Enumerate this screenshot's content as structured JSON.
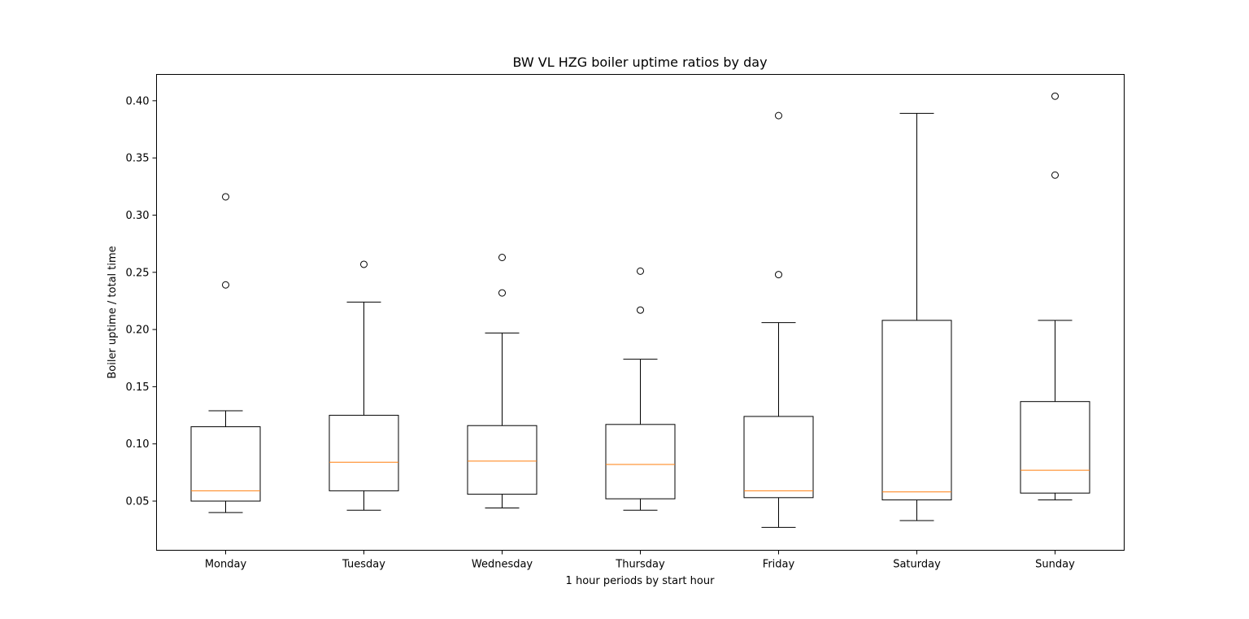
{
  "chart_data": {
    "type": "box",
    "title": "BW VL HZG boiler uptime ratios by day",
    "xlabel": "1 hour periods by start hour",
    "ylabel": "Boiler uptime / total time",
    "ylim": [
      0.007,
      0.423
    ],
    "yticks": [
      "0.05",
      "0.10",
      "0.15",
      "0.20",
      "0.25",
      "0.30",
      "0.35",
      "0.40"
    ],
    "grid": false,
    "colors": {
      "box": "#000000",
      "median": "#ff7f0e",
      "flier": "#000000"
    },
    "categories": [
      "Monday",
      "Tuesday",
      "Wednesday",
      "Thursday",
      "Friday",
      "Saturday",
      "Sunday"
    ],
    "boxes": [
      {
        "category": "Monday",
        "whisker_low": 0.04,
        "q1": 0.05,
        "median": 0.059,
        "q3": 0.115,
        "whisker_high": 0.129,
        "fliers": [
          0.239,
          0.316
        ]
      },
      {
        "category": "Tuesday",
        "whisker_low": 0.042,
        "q1": 0.059,
        "median": 0.084,
        "q3": 0.125,
        "whisker_high": 0.224,
        "fliers": [
          0.257
        ]
      },
      {
        "category": "Wednesday",
        "whisker_low": 0.044,
        "q1": 0.056,
        "median": 0.085,
        "q3": 0.116,
        "whisker_high": 0.197,
        "fliers": [
          0.232,
          0.263
        ]
      },
      {
        "category": "Thursday",
        "whisker_low": 0.042,
        "q1": 0.052,
        "median": 0.082,
        "q3": 0.117,
        "whisker_high": 0.174,
        "fliers": [
          0.217,
          0.251
        ]
      },
      {
        "category": "Friday",
        "whisker_low": 0.027,
        "q1": 0.053,
        "median": 0.059,
        "q3": 0.124,
        "whisker_high": 0.206,
        "fliers": [
          0.248,
          0.387
        ]
      },
      {
        "category": "Saturday",
        "whisker_low": 0.033,
        "q1": 0.051,
        "median": 0.058,
        "q3": 0.208,
        "whisker_high": 0.389,
        "fliers": []
      },
      {
        "category": "Sunday",
        "whisker_low": 0.051,
        "q1": 0.057,
        "median": 0.077,
        "q3": 0.137,
        "whisker_high": 0.208,
        "fliers": [
          0.335,
          0.404
        ]
      }
    ]
  }
}
